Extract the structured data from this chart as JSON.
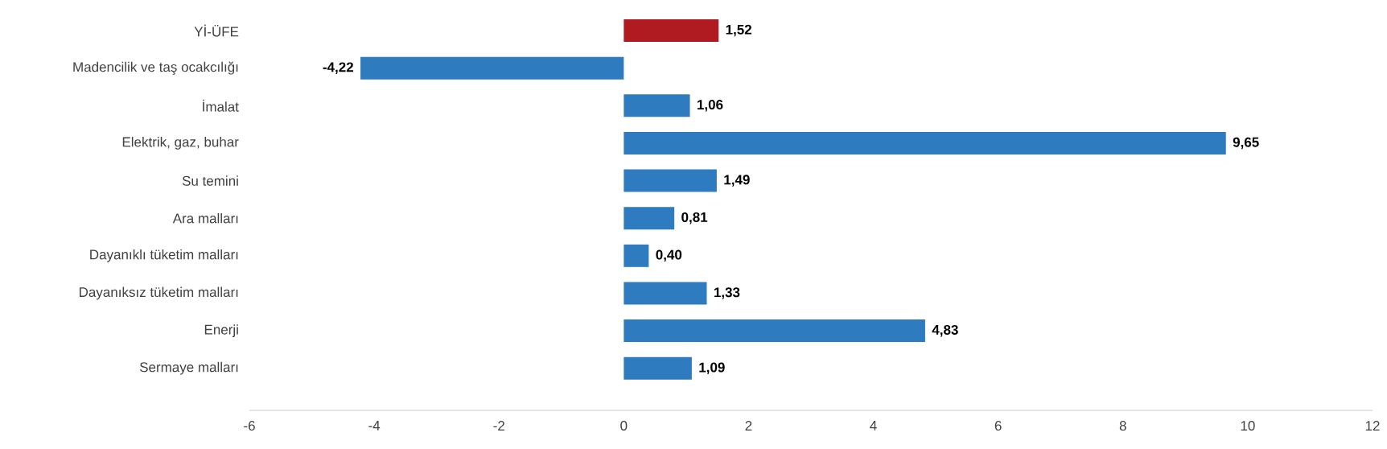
{
  "chart_data": {
    "type": "bar",
    "orientation": "horizontal",
    "categories": [
      "Yİ-ÜFE",
      "Madencilik ve taş ocakcılığı",
      "İmalat",
      "Elektrik, gaz, buhar",
      "Su temini",
      "Ara malları",
      "Dayanıklı tüketim malları",
      "Dayanıksız tüketim malları",
      "Enerji",
      "Sermaye malları"
    ],
    "values": [
      1.52,
      -4.22,
      1.06,
      9.65,
      1.49,
      0.81,
      0.4,
      1.33,
      4.83,
      1.09
    ],
    "value_labels": [
      "1,52",
      "-4,22",
      "1,06",
      "9,65",
      "1,49",
      "0,81",
      "0,40",
      "1,33",
      "4,83",
      "1,09"
    ],
    "colors": [
      "#b01b22",
      "#2e7cbf",
      "#2e7cbf",
      "#2e7cbf",
      "#2e7cbf",
      "#2e7cbf",
      "#2e7cbf",
      "#2e7cbf",
      "#2e7cbf",
      "#2e7cbf"
    ],
    "xlim": [
      -6,
      12
    ],
    "xticks": [
      -6,
      -4,
      -2,
      0,
      2,
      4,
      6,
      8,
      10,
      12
    ],
    "grid": false
  }
}
